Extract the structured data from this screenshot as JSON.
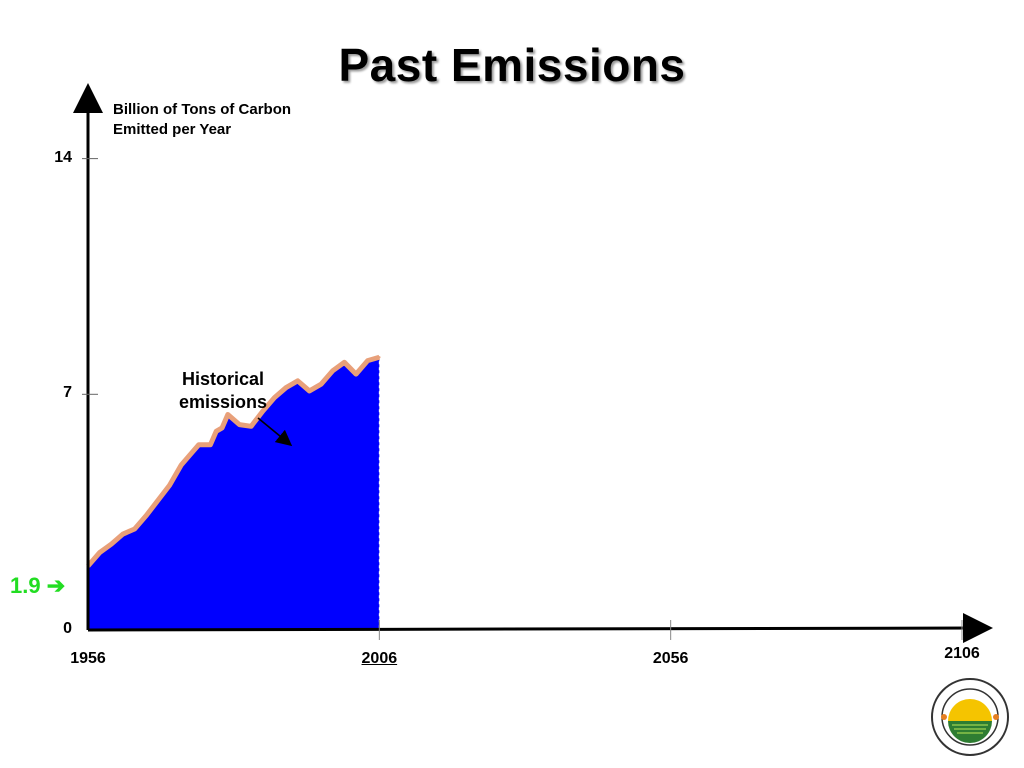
{
  "title": "Past Emissions",
  "start_marker": {
    "value": "1.9",
    "arrow": "➔"
  },
  "annotation": {
    "line1": "Historical",
    "line2": "emissions"
  },
  "logo": {
    "name": "Carbon Mitigation Initiative"
  },
  "chart_data": {
    "type": "area",
    "title": "Past Emissions",
    "ylabel": "Billion of Tons of Carbon Emitted per Year",
    "xlabel": "",
    "xlim": [
      1956,
      2106
    ],
    "ylim": [
      0,
      15.8
    ],
    "yticks": [
      0,
      7,
      14
    ],
    "xticks": [
      {
        "value": 1956,
        "label": "1956"
      },
      {
        "value": 2006,
        "label": "2006",
        "underline": true
      },
      {
        "value": 2056,
        "label": "2056"
      },
      {
        "value": 2106,
        "label": "2106"
      }
    ],
    "colors": {
      "fill": "#0000ff",
      "outline": "#e8a07a",
      "start_marker": "#22dd22"
    },
    "series": [
      {
        "name": "Historical emissions",
        "x": [
          1956,
          1958,
          1960,
          1962,
          1964,
          1966,
          1968,
          1970,
          1972,
          1974,
          1975,
          1977,
          1978,
          1979,
          1980,
          1982,
          1984,
          1986,
          1988,
          1990,
          1992,
          1994,
          1996,
          1998,
          2000,
          2002,
          2004,
          2006
        ],
        "y": [
          1.9,
          2.3,
          2.55,
          2.85,
          3.0,
          3.4,
          3.85,
          4.3,
          4.9,
          5.3,
          5.5,
          5.5,
          5.9,
          6.0,
          6.4,
          6.1,
          6.05,
          6.5,
          6.9,
          7.2,
          7.4,
          7.1,
          7.3,
          7.7,
          7.95,
          7.6,
          8.0,
          8.1
        ]
      }
    ]
  }
}
